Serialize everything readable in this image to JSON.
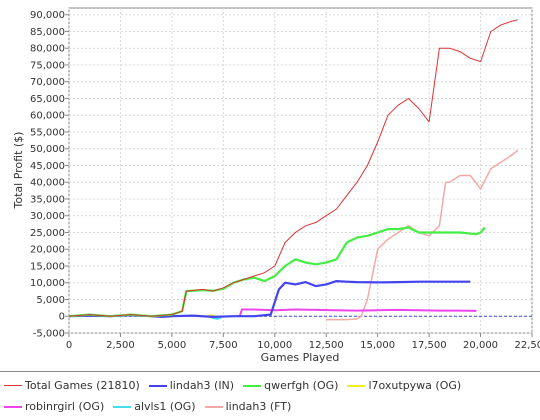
{
  "chart_data": {
    "type": "line",
    "title": "",
    "xlabel": "Games Played",
    "ylabel": "Total Profit ($)",
    "xlim": [
      0,
      22500
    ],
    "ylim": [
      -5000,
      92000
    ],
    "xticks": [
      0,
      2500,
      5000,
      7500,
      10000,
      12500,
      15000,
      17500,
      20000,
      22500
    ],
    "xtick_labels": [
      "0",
      "2,500",
      "5,000",
      "7,500",
      "10,000",
      "12,500",
      "15,000",
      "17,500",
      "20,000",
      "22,500"
    ],
    "yticks": [
      -5000,
      0,
      5000,
      10000,
      15000,
      20000,
      25000,
      30000,
      35000,
      40000,
      45000,
      50000,
      55000,
      60000,
      65000,
      70000,
      75000,
      80000,
      85000,
      90000
    ],
    "ytick_labels": [
      "-5,000",
      "0",
      "5,000",
      "10,000",
      "15,000",
      "20,000",
      "25,000",
      "30,000",
      "35,000",
      "40,000",
      "45,000",
      "50,000",
      "55,000",
      "60,000",
      "65,000",
      "70,000",
      "75,000",
      "80,000",
      "85,000",
      "90,000"
    ],
    "grid": true,
    "zero_line": true,
    "legend_position": "bottom",
    "series": [
      {
        "name": "Total Games (21810)",
        "color": "#e03030",
        "stroke": 1,
        "x": [
          0,
          1000,
          2000,
          3000,
          4000,
          5000,
          5500,
          5700,
          6500,
          7000,
          7500,
          8000,
          8500,
          9000,
          9500,
          10000,
          10500,
          11000,
          11500,
          12000,
          12500,
          13000,
          13500,
          14000,
          14500,
          15000,
          15500,
          16000,
          16500,
          17000,
          17500,
          18000,
          18500,
          19000,
          19500,
          20000,
          20500,
          21000,
          21500,
          21810
        ],
        "y": [
          0,
          500,
          0,
          500,
          0,
          500,
          1500,
          7500,
          8000,
          7500,
          8500,
          10000,
          11000,
          12000,
          13000,
          15000,
          22000,
          25000,
          27000,
          28000,
          30000,
          32000,
          36000,
          40000,
          45000,
          52000,
          60000,
          63000,
          65000,
          62000,
          58000,
          80000,
          80000,
          79000,
          77000,
          76000,
          85000,
          87000,
          88000,
          88500
        ]
      },
      {
        "name": "lindah3 (IN)",
        "color": "#4444ee",
        "stroke": 2.2,
        "x": [
          0,
          1000,
          2000,
          3000,
          4000,
          4500,
          5000,
          6000,
          7000,
          8000,
          9000,
          9800,
          10200,
          10500,
          11000,
          11500,
          12000,
          12500,
          13000,
          13500,
          14000,
          15000,
          16000,
          17000,
          18000,
          19000,
          19500
        ],
        "y": [
          0,
          200,
          0,
          300,
          0,
          -200,
          0,
          200,
          -200,
          0,
          0,
          500,
          8000,
          10000,
          9500,
          10200,
          9000,
          9500,
          10500,
          10300,
          10200,
          10100,
          10200,
          10300,
          10300,
          10300,
          10300
        ]
      },
      {
        "name": "qwerfgh (OG)",
        "color": "#44ee44",
        "stroke": 2.2,
        "x": [
          0,
          1000,
          2000,
          3000,
          4000,
          5000,
          5500,
          5700,
          6500,
          7000,
          7500,
          8000,
          8500,
          9000,
          9500,
          10000,
          10500,
          11000,
          11500,
          12000,
          12500,
          13000,
          13500,
          14000,
          14500,
          15000,
          15500,
          16000,
          16500,
          17000,
          17500,
          18000,
          19000,
          19800,
          20000,
          20200
        ],
        "y": [
          0,
          500,
          0,
          500,
          0,
          500,
          1500,
          7500,
          7800,
          7600,
          8200,
          10000,
          11000,
          11500,
          10500,
          12000,
          15000,
          17000,
          16000,
          15500,
          16000,
          17000,
          22000,
          23500,
          24000,
          25000,
          26000,
          26000,
          26500,
          25000,
          25000,
          25000,
          25000,
          24500,
          25000,
          26500
        ]
      },
      {
        "name": "l7oxutpywa (OG)",
        "color": "#eeee22",
        "stroke": 2,
        "x": [
          6700,
          6900,
          7100
        ],
        "y": [
          0,
          300,
          0
        ]
      },
      {
        "name": "robinrgirl (OG)",
        "color": "#ee44ee",
        "stroke": 2,
        "x": [
          8300,
          8400,
          9000,
          10000,
          11000,
          12000,
          13000,
          14000,
          15000,
          16000,
          17000,
          18000,
          19000,
          19800
        ],
        "y": [
          0,
          2000,
          2000,
          1800,
          2000,
          1900,
          1800,
          1700,
          1800,
          1900,
          1800,
          1700,
          1700,
          1600
        ]
      },
      {
        "name": "alvls1 (OG)",
        "color": "#44ddee",
        "stroke": 2,
        "x": [
          6800,
          7000,
          7200,
          7400
        ],
        "y": [
          0,
          -500,
          -800,
          -300
        ]
      },
      {
        "name": "lindah3 (FT)",
        "color": "#f4a8a8",
        "stroke": 1.5,
        "x": [
          12500,
          13000,
          13500,
          14000,
          14200,
          14500,
          15000,
          15500,
          16000,
          16500,
          17000,
          17500,
          18000,
          18300,
          18500,
          19000,
          19500,
          20000,
          20500,
          21000,
          21500,
          21810
        ],
        "y": [
          -1000,
          -1000,
          -1000,
          -800,
          0,
          5000,
          20000,
          23000,
          25000,
          27000,
          25000,
          24000,
          27000,
          40000,
          40000,
          42000,
          42000,
          38000,
          44000,
          46000,
          48000,
          49500
        ]
      }
    ]
  }
}
